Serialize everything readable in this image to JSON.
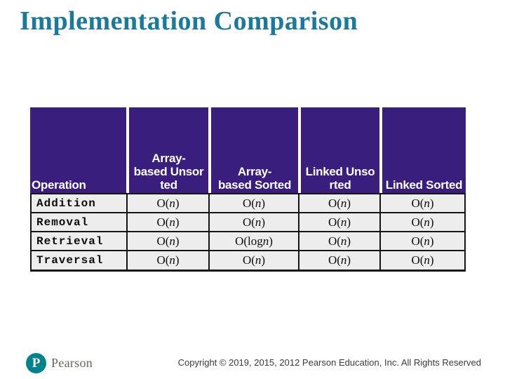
{
  "title": "Implementation Comparison",
  "colors": {
    "title-color": "#1B7A9B",
    "header-bg": "#391E7D",
    "header-text": "#FFFFFF",
    "body-bg": "#EDEDED",
    "border-color": "#141414",
    "logo-color": "#00838C",
    "wordmark-color": "#6A6460",
    "copyright-color": "#3A3A3A"
  },
  "table": {
    "headers": [
      "Operation",
      "Array-\nbased Unsor\nted",
      "Array-\nbased Sorted",
      "Linked Unso\nrted",
      "Linked Sorted"
    ],
    "rows": [
      {
        "operation": "Addition",
        "values": [
          "O(n)",
          "O(n)",
          "O(n)",
          "O(n)"
        ]
      },
      {
        "operation": "Removal",
        "values": [
          "O(n)",
          "O(n)",
          "O(n)",
          "O(n)"
        ]
      },
      {
        "operation": "Retrieval",
        "values": [
          "O(n)",
          "O(log n)",
          "O(n)",
          "O(n)"
        ]
      },
      {
        "operation": "Traversal",
        "values": [
          "O(n)",
          "O(n)",
          "O(n)",
          "O(n)"
        ]
      }
    ]
  },
  "footer": {
    "logo_letter": "P",
    "logo_wordmark": "Pearson",
    "copyright": "Copyright © 2019, 2015, 2012 Pearson Education, Inc. All Rights Reserved"
  }
}
